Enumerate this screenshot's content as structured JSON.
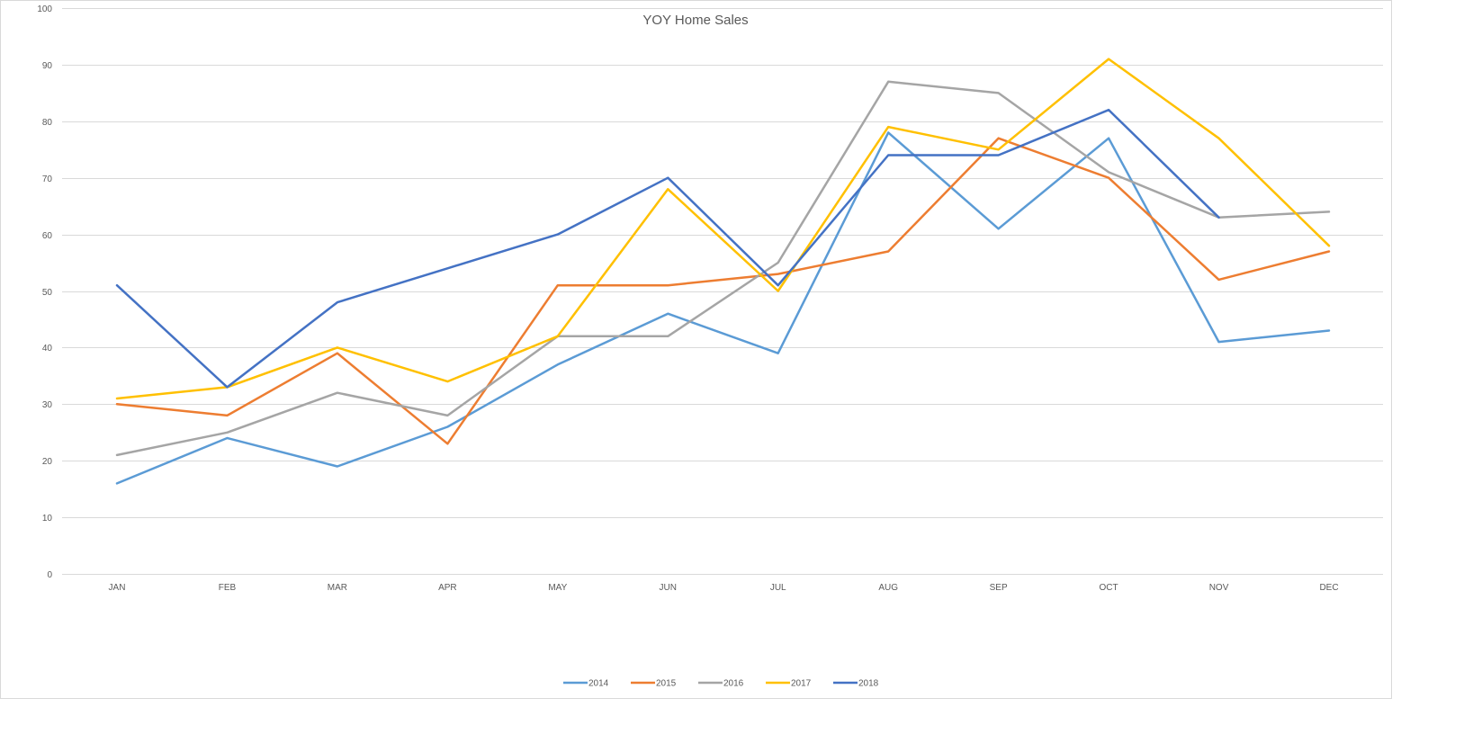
{
  "chart_data": {
    "type": "line",
    "title": "YOY Home Sales",
    "xlabel": "",
    "ylabel": "",
    "categories": [
      "JAN",
      "FEB",
      "MAR",
      "APR",
      "MAY",
      "JUN",
      "JUL",
      "AUG",
      "SEP",
      "OCT",
      "NOV",
      "DEC"
    ],
    "ylim": [
      0,
      100
    ],
    "yticks": [
      0,
      10,
      20,
      30,
      40,
      50,
      60,
      70,
      80,
      90,
      100
    ],
    "grid": true,
    "legend_position": "bottom",
    "series": [
      {
        "name": "2014",
        "color": "#5b9bd5",
        "values": [
          16,
          24,
          19,
          26,
          37,
          46,
          39,
          78,
          61,
          77,
          41,
          43
        ]
      },
      {
        "name": "2015",
        "color": "#ed7d31",
        "values": [
          30,
          28,
          39,
          23,
          51,
          51,
          53,
          57,
          77,
          70,
          52,
          57
        ]
      },
      {
        "name": "2016",
        "color": "#a5a5a5",
        "values": [
          21,
          25,
          32,
          28,
          42,
          42,
          55,
          87,
          85,
          71,
          63,
          64
        ]
      },
      {
        "name": "2017",
        "color": "#ffc000",
        "values": [
          31,
          33,
          40,
          34,
          42,
          68,
          50,
          79,
          75,
          91,
          77,
          58
        ]
      },
      {
        "name": "2018",
        "color": "#4472c4",
        "values": [
          51,
          33,
          48,
          54,
          60,
          70,
          51,
          74,
          74,
          82,
          63,
          null
        ]
      }
    ]
  }
}
